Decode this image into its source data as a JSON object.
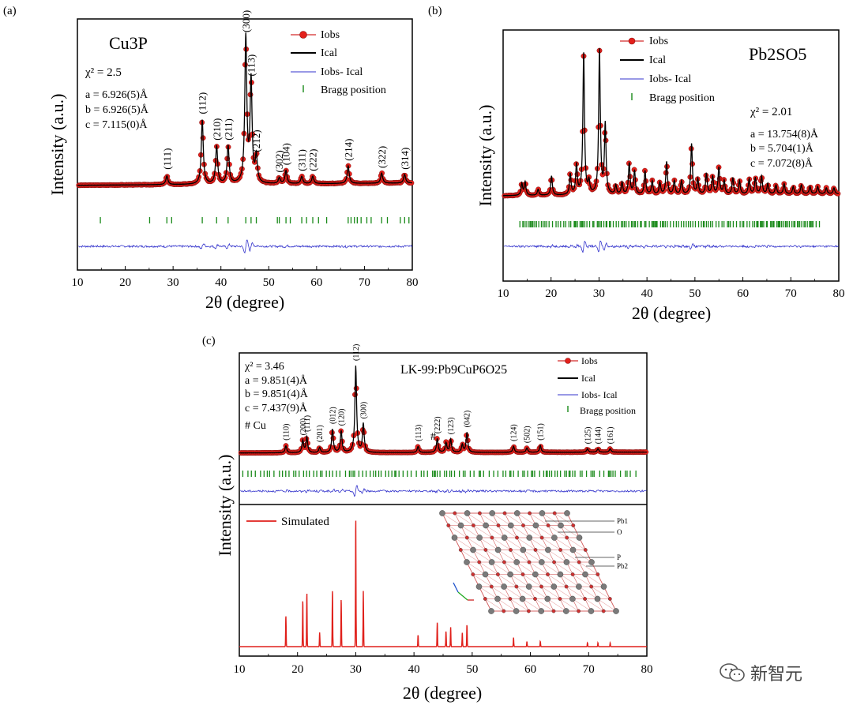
{
  "chart_data": [
    {
      "id": "a",
      "type": "line",
      "panel_label": "(a)",
      "title": "Cu3P",
      "chi2": "χ² = 2.5",
      "params": [
        "a = 6.926(5)Å",
        "b = 6.926(5)Å",
        "c = 7.115(0)Å"
      ],
      "xlabel": "2θ (degree)",
      "ylabel": "Intensity (a.u.)",
      "xlim": [
        10,
        80
      ],
      "xticks": [
        "10",
        "20",
        "30",
        "40",
        "50",
        "60",
        "70",
        "80"
      ],
      "legend": [
        "Iobs",
        "Ical",
        "Iobs- Ical",
        "Bragg position"
      ],
      "baseline": 6,
      "peaks": [
        {
          "x": 28.7,
          "h": 6,
          "label": "(111)"
        },
        {
          "x": 36.1,
          "h": 44,
          "label": "(112)"
        },
        {
          "x": 39.1,
          "h": 26,
          "label": "(210)"
        },
        {
          "x": 41.5,
          "h": 26,
          "label": "(211)"
        },
        {
          "x": 45.2,
          "h": 100,
          "label": "(300)"
        },
        {
          "x": 46.3,
          "h": 70,
          "label": "(113)"
        },
        {
          "x": 47.4,
          "h": 18,
          "label": "(212)"
        },
        {
          "x": 52.2,
          "h": 4,
          "label": "(302)"
        },
        {
          "x": 53.6,
          "h": 9,
          "label": "(104)"
        },
        {
          "x": 56.9,
          "h": 5,
          "label": "(311)"
        },
        {
          "x": 59.2,
          "h": 5,
          "label": "(222)"
        },
        {
          "x": 66.6,
          "h": 12,
          "label": "(214)"
        },
        {
          "x": 73.6,
          "h": 7,
          "label": "(322)"
        },
        {
          "x": 78.4,
          "h": 6,
          "label": "(314)"
        }
      ],
      "bragg": [
        14.8,
        25.1,
        28.7,
        29.7,
        36.1,
        39.1,
        41.5,
        45.2,
        46.3,
        47.4,
        51.8,
        52.2,
        53.6,
        54.5,
        56.9,
        57.9,
        59.2,
        60.4,
        62.1,
        66.6,
        67.2,
        67.9,
        68.5,
        69.3,
        70.5,
        71.4,
        73.6,
        74.8,
        77.5,
        78.4,
        79.3
      ]
    },
    {
      "id": "b",
      "type": "line",
      "panel_label": "(b)",
      "title": "Pb2SO5",
      "chi2": "χ² = 2.01",
      "params": [
        "a = 13.754(8)Å",
        "b = 5.704(1)Å",
        "c = 7.072(8)Å"
      ],
      "xlabel": "2θ (degree)",
      "ylabel": "Intensity (a.u.)",
      "xlim": [
        10,
        80
      ],
      "xticks": [
        "10",
        "20",
        "30",
        "40",
        "50",
        "60",
        "70",
        "80"
      ],
      "legend": [
        "Iobs",
        "Ical",
        "Iobs- Ical",
        "Bragg position"
      ],
      "baseline": 5,
      "peaks": [
        {
          "x": 13.9,
          "h": 8
        },
        {
          "x": 14.6,
          "h": 9
        },
        {
          "x": 17.3,
          "h": 4
        },
        {
          "x": 20.1,
          "h": 13
        },
        {
          "x": 24.0,
          "h": 14
        },
        {
          "x": 25.3,
          "h": 20
        },
        {
          "x": 26.8,
          "h": 95
        },
        {
          "x": 27.9,
          "h": 8
        },
        {
          "x": 30.1,
          "h": 97
        },
        {
          "x": 31.3,
          "h": 47
        },
        {
          "x": 33.5,
          "h": 6
        },
        {
          "x": 34.8,
          "h": 8
        },
        {
          "x": 36.3,
          "h": 21
        },
        {
          "x": 37.4,
          "h": 16
        },
        {
          "x": 39.6,
          "h": 16
        },
        {
          "x": 41.1,
          "h": 9
        },
        {
          "x": 42.7,
          "h": 8
        },
        {
          "x": 44.1,
          "h": 22
        },
        {
          "x": 45.7,
          "h": 9
        },
        {
          "x": 47.2,
          "h": 9
        },
        {
          "x": 49.3,
          "h": 34
        },
        {
          "x": 50.6,
          "h": 10
        },
        {
          "x": 52.4,
          "h": 14
        },
        {
          "x": 53.7,
          "h": 12
        },
        {
          "x": 55.0,
          "h": 18
        },
        {
          "x": 56.1,
          "h": 9
        },
        {
          "x": 57.9,
          "h": 11
        },
        {
          "x": 59.3,
          "h": 9
        },
        {
          "x": 61.3,
          "h": 10
        },
        {
          "x": 62.6,
          "h": 11
        },
        {
          "x": 63.9,
          "h": 12
        },
        {
          "x": 65.2,
          "h": 7
        },
        {
          "x": 66.9,
          "h": 6
        },
        {
          "x": 68.6,
          "h": 7
        },
        {
          "x": 70.5,
          "h": 5
        },
        {
          "x": 72.2,
          "h": 6
        },
        {
          "x": 74.0,
          "h": 5
        },
        {
          "x": 75.6,
          "h": 5
        },
        {
          "x": 77.4,
          "h": 4
        },
        {
          "x": 79.0,
          "h": 4
        }
      ],
      "bragg_min": 13.5,
      "bragg_count": 150
    },
    {
      "id": "c",
      "type": "line",
      "panel_label": "(c)",
      "title": "LK-99:Pb9CuP6O25",
      "chi2": "χ² = 3.46",
      "params": [
        "a = 9.851(4)Å",
        "b = 9.851(4)Å",
        "c = 7.437(9)Å"
      ],
      "impurity_note": "# Cu",
      "impurity_marker": {
        "x": 43.3,
        "text": "#"
      },
      "xlabel": "2θ (degree)",
      "ylabel": "Intensity (a.u.)",
      "xlim": [
        10,
        80
      ],
      "xticks": [
        "10",
        "20",
        "30",
        "40",
        "50",
        "60",
        "70",
        "80"
      ],
      "legend": [
        "Iobs",
        "Ical",
        "Iobs- Ical",
        "Bragg position"
      ],
      "baseline": 4,
      "peaks": [
        {
          "x": 18.0,
          "h": 8,
          "label": "(110)"
        },
        {
          "x": 20.9,
          "h": 14,
          "label": "(200)"
        },
        {
          "x": 21.6,
          "h": 18,
          "label": "(111)"
        },
        {
          "x": 23.8,
          "h": 6,
          "label": "(201)"
        },
        {
          "x": 26.0,
          "h": 27,
          "label": "(012)"
        },
        {
          "x": 27.5,
          "h": 25,
          "label": "(120)"
        },
        {
          "x": 30.0,
          "h": 100,
          "label": "(112)"
        },
        {
          "x": 31.3,
          "h": 33,
          "label": "(300)"
        },
        {
          "x": 40.7,
          "h": 7,
          "label": "(113)"
        },
        {
          "x": 44.0,
          "h": 16,
          "label": "(222)"
        },
        {
          "x": 45.5,
          "h": 11
        },
        {
          "x": 46.3,
          "h": 15,
          "label": "(123)"
        },
        {
          "x": 48.3,
          "h": 9
        },
        {
          "x": 49.1,
          "h": 23,
          "label": "(042)"
        },
        {
          "x": 57.1,
          "h": 7,
          "label": "(124)"
        },
        {
          "x": 59.4,
          "h": 5,
          "label": "(502)"
        },
        {
          "x": 61.7,
          "h": 8,
          "label": "(151)"
        },
        {
          "x": 69.8,
          "h": 4,
          "label": "(125)"
        },
        {
          "x": 71.6,
          "h": 4,
          "label": "(144)"
        },
        {
          "x": 73.7,
          "h": 4,
          "label": "(161)"
        }
      ],
      "bragg_min": 10.6,
      "bragg_count": 120,
      "simulated": {
        "legend": "Simulated",
        "peaks": [
          {
            "x": 18.0,
            "h": 24
          },
          {
            "x": 20.9,
            "h": 36
          },
          {
            "x": 21.6,
            "h": 42
          },
          {
            "x": 23.8,
            "h": 11
          },
          {
            "x": 26.0,
            "h": 44
          },
          {
            "x": 27.5,
            "h": 37
          },
          {
            "x": 30.0,
            "h": 100
          },
          {
            "x": 31.3,
            "h": 43
          },
          {
            "x": 40.7,
            "h": 9
          },
          {
            "x": 44.0,
            "h": 19
          },
          {
            "x": 45.5,
            "h": 12
          },
          {
            "x": 46.3,
            "h": 15
          },
          {
            "x": 48.3,
            "h": 11
          },
          {
            "x": 49.1,
            "h": 17
          },
          {
            "x": 57.1,
            "h": 7
          },
          {
            "x": 59.4,
            "h": 4
          },
          {
            "x": 61.7,
            "h": 4
          },
          {
            "x": 69.8,
            "h": 3
          },
          {
            "x": 71.6,
            "h": 3
          },
          {
            "x": 73.7,
            "h": 3
          }
        ]
      },
      "structure_labels": [
        "Pb1",
        "O",
        "P",
        "Pb2"
      ]
    }
  ],
  "watermark": "新智元"
}
